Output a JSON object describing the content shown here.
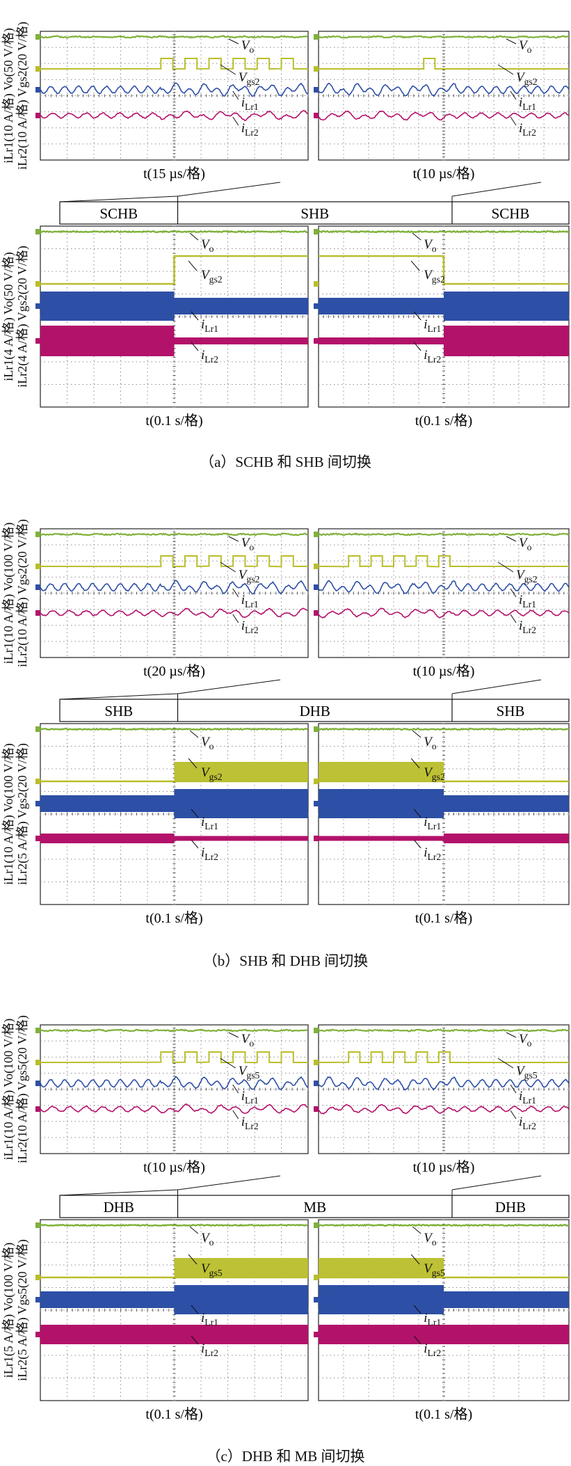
{
  "colors": {
    "vo": "#7fb13a",
    "vgs": "#b9be2a",
    "il1": "#2d4fa5",
    "il2": "#b3126a",
    "grid": "#8c8c8c"
  },
  "panels": [
    {
      "caption": "（a）SCHB 和 SHB 间切换",
      "y_axis_upper": "iLr1(10 A/格) Vo(50 V/格)",
      "y_axis_lower": "iLr2(10 A/格) Vgs2(20 V/格)",
      "y_axis_upper2": "iLr1(4 A/格) Vo(50 V/格)",
      "y_axis_lower2": "iLr2(4 A/格) Vgs2(20 V/格)",
      "zoom_left_timebase": "t(15 µs/格)",
      "zoom_right_timebase": "t(10 µs/格)",
      "full_left_timebase": "t(0.1 s/格)",
      "full_right_timebase": "t(0.1 s/格)",
      "mode_left": "SCHB",
      "mode_center": "SHB",
      "mode_right": "SCHB",
      "gate_label": "Vgs2",
      "traces": {
        "vo": "Vo",
        "vgs": "Vgs2",
        "il1": "iLr1",
        "il2": "iLr2"
      }
    },
    {
      "caption": "（b）SHB 和 DHB 间切换",
      "y_axis_upper": "iLr1(10 A/格) Vo(100 V/格)",
      "y_axis_lower": "iLr2(10 A/格) Vgs2(20 V/格)",
      "y_axis_upper2": "iLr1(10 A/格) Vo(100 V/格)",
      "y_axis_lower2": "iLr2(5 A/格) Vgs2(20 V/格)",
      "zoom_left_timebase": "t(20 µs/格)",
      "zoom_right_timebase": "t(10 µs/格)",
      "full_left_timebase": "t(0.1 s/格)",
      "full_right_timebase": "t(0.1 s/格)",
      "mode_left": "SHB",
      "mode_center": "DHB",
      "mode_right": "SHB",
      "gate_label": "Vgs2",
      "traces": {
        "vo": "Vo",
        "vgs": "Vgs2",
        "il1": "iLr1",
        "il2": "iLr2"
      }
    },
    {
      "caption": "（c）DHB 和 MB 间切换",
      "y_axis_upper": "iLr1(10 A/格) Vo(100 V/格)",
      "y_axis_lower": "iLr2(10 A/格) Vgs5(20 V/格)",
      "y_axis_upper2": "iLr1(5 A/格) Vo(100 V/格)",
      "y_axis_lower2": "iLr2(5 A/格) Vgs5(20 V/格)",
      "zoom_left_timebase": "t(10 µs/格)",
      "zoom_right_timebase": "t(10 µs/格)",
      "full_left_timebase": "t(0.1 s/格)",
      "full_right_timebase": "t(0.1 s/格)",
      "mode_left": "DHB",
      "mode_center": "MB",
      "mode_right": "DHB",
      "gate_label": "Vgs5",
      "traces": {
        "vo": "Vo",
        "vgs": "Vgs5",
        "il1": "iLr1",
        "il2": "iLr2"
      }
    }
  ],
  "chart_data": [
    {
      "type": "line",
      "title": "（a）SCHB 和 SHB 间切换",
      "xlabel": "t(15 µs/格), t(10 µs/格), t(0.1 s/格)",
      "ylabel": "iLr1(10 A/格) Vo(50 V/格) / iLr2(10 A/格) Vgs2(20 V/格)",
      "grid": true,
      "divisions": {
        "x": 10,
        "y": 8
      },
      "transitions": [
        "SCHB → SHB",
        "SHB → SCHB"
      ],
      "series": [
        {
          "name": "Vo"
        },
        {
          "name": "Vgs2"
        },
        {
          "name": "iLr1"
        },
        {
          "name": "iLr2"
        }
      ]
    },
    {
      "type": "line",
      "title": "（b）SHB 和 DHB 间切换",
      "xlabel": "t(20 µs/格), t(10 µs/格), t(0.1 s/格)",
      "ylabel": "iLr1(10 A/格) Vo(100 V/格) / iLr2(10 A/格) Vgs2(20 V/格)",
      "grid": true,
      "divisions": {
        "x": 10,
        "y": 8
      },
      "transitions": [
        "SHB → DHB",
        "DHB → SHB"
      ],
      "series": [
        {
          "name": "Vo"
        },
        {
          "name": "Vgs2"
        },
        {
          "name": "iLr1"
        },
        {
          "name": "iLr2"
        }
      ]
    },
    {
      "type": "line",
      "title": "（c）DHB 和 MB 间切换",
      "xlabel": "t(10 µs/格), t(0.1 s/格)",
      "ylabel": "iLr1(10 A/格) Vo(100 V/格) / iLr2(10 A/格) Vgs5(20 V/格)",
      "grid": true,
      "divisions": {
        "x": 10,
        "y": 8
      },
      "transitions": [
        "DHB → MB",
        "MB → DHB"
      ],
      "series": [
        {
          "name": "Vo"
        },
        {
          "name": "Vgs5"
        },
        {
          "name": "iLr1"
        },
        {
          "name": "iLr2"
        }
      ]
    }
  ]
}
